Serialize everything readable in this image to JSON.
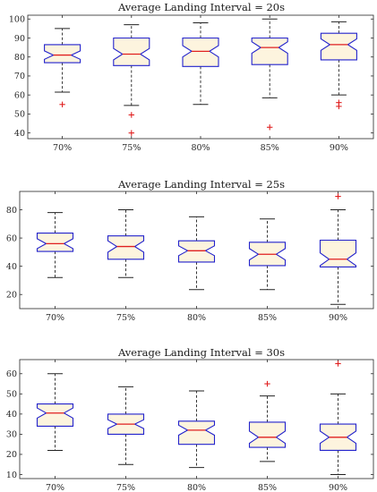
{
  "chart_data": [
    {
      "type": "boxplot",
      "notched": true,
      "title": "Average Landing Interval = 20s",
      "categories": [
        "70%",
        "75%",
        "80%",
        "85%",
        "90%"
      ],
      "ylim": [
        37,
        102
      ],
      "yticks": [
        40,
        50,
        60,
        70,
        80,
        90,
        100
      ],
      "boxes": [
        {
          "whisker_low": 61.5,
          "q1": 77,
          "median": 81,
          "q3": 86.5,
          "whisker_high": 95,
          "notch_low": 78.8,
          "notch_high": 83.2,
          "outliers": [
            55
          ]
        },
        {
          "whisker_low": 54.5,
          "q1": 75.5,
          "median": 81.5,
          "q3": 90,
          "whisker_high": 97,
          "notch_low": 78.5,
          "notch_high": 84.5,
          "outliers": [
            49.5,
            40
          ]
        },
        {
          "whisker_low": 55,
          "q1": 75,
          "median": 83,
          "q3": 90,
          "whisker_high": 98,
          "notch_low": 80,
          "notch_high": 86,
          "outliers": []
        },
        {
          "whisker_low": 58.5,
          "q1": 76,
          "median": 85,
          "q3": 90,
          "whisker_high": 100,
          "notch_low": 82,
          "notch_high": 88,
          "outliers": [
            43
          ]
        },
        {
          "whisker_low": 60,
          "q1": 78.5,
          "median": 86.5,
          "q3": 92.5,
          "whisker_high": 98.5,
          "notch_low": 83.5,
          "notch_high": 89.5,
          "outliers": [
            56,
            54
          ]
        }
      ]
    },
    {
      "type": "boxplot",
      "notched": true,
      "title": "Average Landing Interval = 25s",
      "categories": [
        "70%",
        "75%",
        "80%",
        "85%",
        "90%"
      ],
      "ylim": [
        10,
        93
      ],
      "yticks": [
        20,
        40,
        60,
        80
      ],
      "boxes": [
        {
          "whisker_low": 32,
          "q1": 50.5,
          "median": 56,
          "q3": 63.5,
          "whisker_high": 78,
          "notch_low": 52.5,
          "notch_high": 59.5,
          "outliers": []
        },
        {
          "whisker_low": 32,
          "q1": 45,
          "median": 54,
          "q3": 61.5,
          "whisker_high": 80,
          "notch_low": 50,
          "notch_high": 58,
          "outliers": []
        },
        {
          "whisker_low": 23.5,
          "q1": 43,
          "median": 51,
          "q3": 58,
          "whisker_high": 75,
          "notch_low": 47.5,
          "notch_high": 54.5,
          "outliers": []
        },
        {
          "whisker_low": 23.5,
          "q1": 40.5,
          "median": 48.5,
          "q3": 57,
          "whisker_high": 73.5,
          "notch_low": 44.5,
          "notch_high": 52.5,
          "outliers": []
        },
        {
          "whisker_low": 13,
          "q1": 39.5,
          "median": 45,
          "q3": 58.5,
          "whisker_high": 80,
          "notch_low": 40.5,
          "notch_high": 49.5,
          "outliers": [
            89.5
          ]
        }
      ]
    },
    {
      "type": "boxplot",
      "notched": true,
      "title": "Average Landing Interval = 30s",
      "categories": [
        "70%",
        "75%",
        "80%",
        "85%",
        "90%"
      ],
      "ylim": [
        8,
        67
      ],
      "yticks": [
        10,
        20,
        30,
        40,
        50,
        60
      ],
      "boxes": [
        {
          "whisker_low": 22,
          "q1": 34,
          "median": 40.5,
          "q3": 45,
          "whisker_high": 60,
          "notch_low": 38,
          "notch_high": 43,
          "outliers": []
        },
        {
          "whisker_low": 15,
          "q1": 30,
          "median": 35,
          "q3": 40,
          "whisker_high": 53.5,
          "notch_low": 32.8,
          "notch_high": 37.2,
          "outliers": []
        },
        {
          "whisker_low": 13.5,
          "q1": 25,
          "median": 32,
          "q3": 36.5,
          "whisker_high": 51.5,
          "notch_low": 29.5,
          "notch_high": 34.5,
          "outliers": []
        },
        {
          "whisker_low": 16.5,
          "q1": 23.5,
          "median": 28.5,
          "q3": 36,
          "whisker_high": 49,
          "notch_low": 25.5,
          "notch_high": 31.5,
          "outliers": [
            55
          ]
        },
        {
          "whisker_low": 10,
          "q1": 22,
          "median": 28.5,
          "q3": 35,
          "whisker_high": 50,
          "notch_low": 25.5,
          "notch_high": 31.5,
          "outliers": [
            65
          ]
        }
      ]
    }
  ]
}
